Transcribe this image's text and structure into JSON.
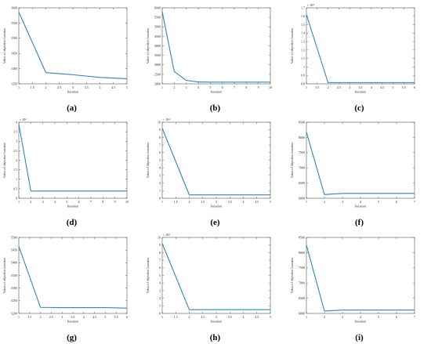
{
  "colors": {
    "line": "#2E86C1",
    "axis": "#555555",
    "text": "#222222"
  },
  "chart_data": [
    {
      "type": "line",
      "panel_label": "(a)",
      "xlabel": "Iteration",
      "ylabel": "Value of objective function",
      "xlim": [
        1,
        5
      ],
      "ylim": [
        1350,
        1600
      ],
      "xticks": [
        1,
        1.5,
        2,
        2.5,
        3,
        3.5,
        4,
        4.5,
        5
      ],
      "yticks": [
        1350,
        1400,
        1450,
        1500,
        1550,
        1600
      ],
      "x": [
        1,
        2,
        3,
        4,
        5
      ],
      "y": [
        1586,
        1387,
        1380,
        1371,
        1367
      ]
    },
    {
      "type": "line",
      "panel_label": "(b)",
      "xlabel": "Iteration",
      "ylabel": "Value of objective function",
      "xlim": [
        1,
        10
      ],
      "ylim": [
        2000,
        6000
      ],
      "xticks": [
        1,
        2,
        3,
        4,
        5,
        6,
        7,
        8,
        9,
        10
      ],
      "yticks": [
        2000,
        2500,
        3000,
        3500,
        4000,
        4500,
        5000,
        5500,
        6000
      ],
      "x": [
        1,
        2,
        3,
        4,
        5,
        6,
        7,
        8,
        9,
        10
      ],
      "y": [
        5800,
        2650,
        2180,
        2100,
        2090,
        2090,
        2090,
        2090,
        2090,
        2090
      ]
    },
    {
      "type": "line",
      "panel_label": "(c)",
      "xlabel": "Iteration",
      "ylabel": "Value of objective function",
      "exponent_label": "× 10⁴",
      "xlim": [
        1,
        6
      ],
      "ylim": [
        0.8,
        1.7
      ],
      "xticks": [
        1,
        1.5,
        2,
        2.5,
        3,
        3.5,
        4,
        4.5,
        5,
        5.5,
        6
      ],
      "yticks": [
        0.8,
        0.9,
        1,
        1.1,
        1.2,
        1.3,
        1.4,
        1.5,
        1.6,
        1.7
      ],
      "x": [
        1,
        2,
        3,
        4,
        5,
        6
      ],
      "y": [
        1.62,
        0.815,
        0.815,
        0.815,
        0.815,
        0.815
      ]
    },
    {
      "type": "line",
      "panel_label": "(d)",
      "xlabel": "Iteration",
      "ylabel": "Value of objective function",
      "exponent_label": "× 10⁴",
      "xlim": [
        1,
        10
      ],
      "ylim": [
        0,
        4
      ],
      "xticks": [
        1,
        2,
        3,
        4,
        5,
        6,
        7,
        8,
        9,
        10
      ],
      "yticks": [
        0,
        0.5,
        1,
        1.5,
        2,
        2.5,
        3,
        3.5,
        4
      ],
      "x": [
        1,
        2,
        3,
        4,
        5,
        6,
        7,
        8,
        9,
        10
      ],
      "y": [
        3.9,
        0.38,
        0.38,
        0.38,
        0.38,
        0.38,
        0.38,
        0.38,
        0.38,
        0.38
      ]
    },
    {
      "type": "line",
      "panel_label": "(e)",
      "xlabel": "Iteration",
      "ylabel": "Value of objective function",
      "exponent_label": "× 10⁴",
      "xlim": [
        1,
        5
      ],
      "ylim": [
        0,
        10
      ],
      "xticks": [
        1,
        1.5,
        2,
        2.5,
        3,
        3.5,
        4,
        4.5,
        5
      ],
      "yticks": [
        0,
        1,
        2,
        3,
        4,
        5,
        6,
        7,
        8,
        9,
        10
      ],
      "x": [
        1,
        2,
        3,
        4,
        5
      ],
      "y": [
        9.2,
        0.45,
        0.45,
        0.45,
        0.45
      ]
    },
    {
      "type": "line",
      "panel_label": "(f)",
      "xlabel": "Iteration",
      "ylabel": "Value of objective function",
      "xlim": [
        1,
        7
      ],
      "ylim": [
        6000,
        8500
      ],
      "xticks": [
        1,
        2,
        3,
        4,
        5,
        6,
        7
      ],
      "yticks": [
        6000,
        6500,
        7000,
        7500,
        8000,
        8500
      ],
      "x": [
        1,
        2,
        3,
        4,
        5,
        6,
        7
      ],
      "y": [
        8180,
        6120,
        6160,
        6160,
        6160,
        6160,
        6160
      ]
    },
    {
      "type": "line",
      "panel_label": "(g)",
      "xlabel": "Iteration",
      "ylabel": "Value of objective function",
      "xlim": [
        1,
        6
      ],
      "ylim": [
        5200,
        5500
      ],
      "xticks": [
        1,
        1.5,
        2,
        2.5,
        3,
        3.5,
        4,
        4.5,
        5,
        5.5,
        6
      ],
      "yticks": [
        5200,
        5250,
        5300,
        5350,
        5400,
        5450,
        5500
      ],
      "x": [
        1,
        2,
        3,
        4,
        5,
        6
      ],
      "y": [
        5465,
        5224,
        5223,
        5223,
        5223,
        5221
      ]
    },
    {
      "type": "line",
      "panel_label": "(h)",
      "xlabel": "Iteration",
      "ylabel": "Value of objective function",
      "exponent_label": "× 10⁴",
      "xlim": [
        1,
        5
      ],
      "ylim": [
        0,
        10
      ],
      "xticks": [
        1,
        1.5,
        2,
        2.5,
        3,
        3.5,
        4,
        4.5,
        5
      ],
      "yticks": [
        0,
        1,
        2,
        3,
        4,
        5,
        6,
        7,
        8,
        9,
        10
      ],
      "x": [
        1,
        2,
        3,
        4,
        5
      ],
      "y": [
        9.2,
        0.5,
        0.5,
        0.5,
        0.5
      ]
    },
    {
      "type": "line",
      "panel_label": "(i)",
      "xlabel": "Iteration",
      "ylabel": "Value of objective function",
      "xlim": [
        1,
        7
      ],
      "ylim": [
        6000,
        8500
      ],
      "xticks": [
        1,
        2,
        3,
        4,
        5,
        6,
        7
      ],
      "yticks": [
        6000,
        6500,
        7000,
        7500,
        8000,
        8500
      ],
      "x": [
        1,
        2,
        3,
        4,
        5,
        6,
        7
      ],
      "y": [
        8250,
        6080,
        6110,
        6110,
        6110,
        6110,
        6110
      ]
    }
  ]
}
